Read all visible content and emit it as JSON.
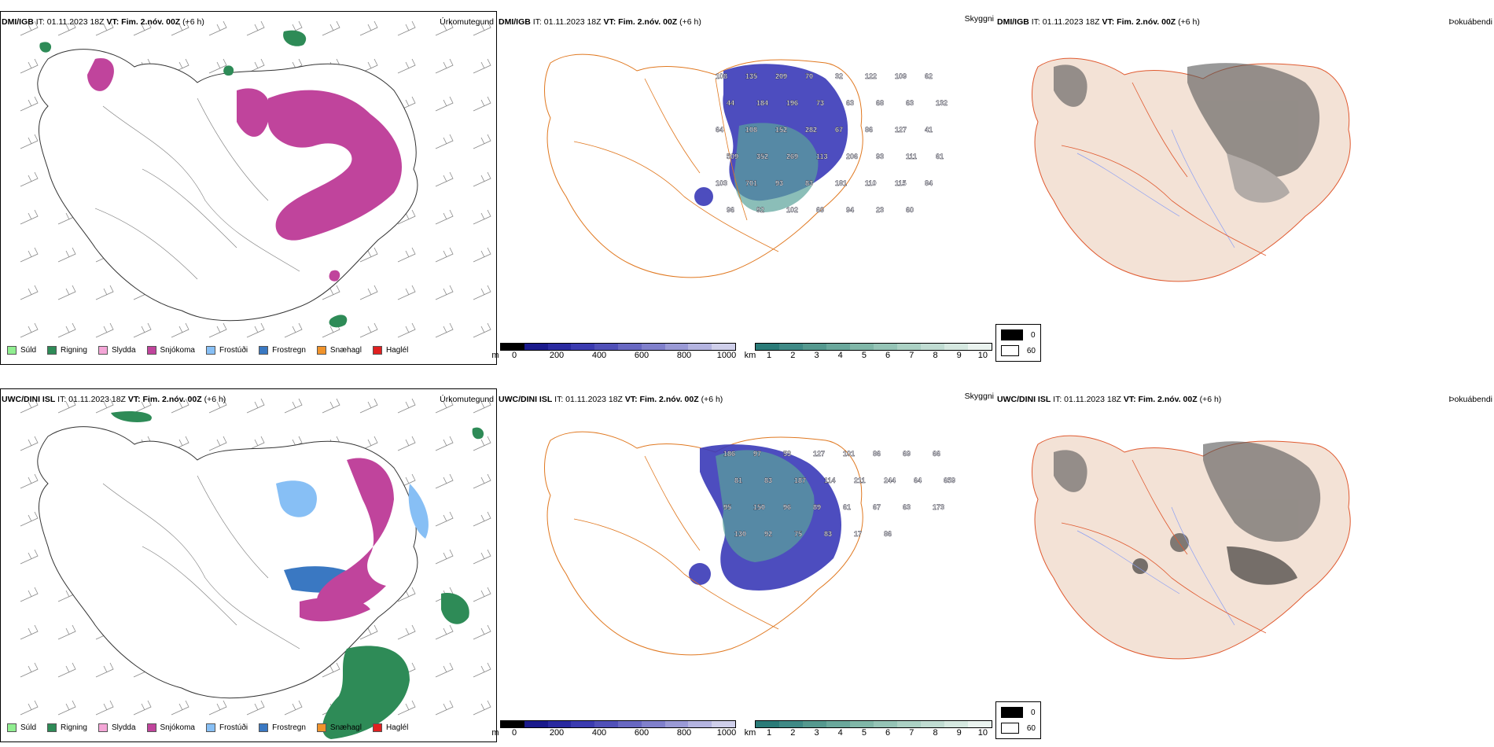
{
  "rows": [
    {
      "id": "top",
      "prefix": "DMI/IGB",
      "it": "IT: 01.11.2023 18Z",
      "vt_label": "VT: Fim. 2.nóv. 00Z",
      "vt_offset": "(+6 h)",
      "precip_title": "Úrkomutegund",
      "cloud_title": "Skyggni",
      "fog_title": "Þokuábendi",
      "value_labels": [
        "108",
        "135",
        "209",
        "70",
        "32",
        "122",
        "109",
        "62",
        "44",
        "184",
        "196",
        "73",
        "63",
        "68",
        "63",
        "132",
        "64",
        "108",
        "152",
        "282",
        "67",
        "86",
        "127",
        "41",
        "509",
        "352",
        "269",
        "113",
        "206",
        "93",
        "111",
        "61",
        "103",
        "701",
        "93",
        "83",
        "181",
        "110",
        "115",
        "84",
        "96",
        "92",
        "102",
        "69",
        "94",
        "23",
        "60"
      ]
    },
    {
      "id": "bottom",
      "prefix": "UWC/DINI ISL",
      "it": "IT: 01.11.2023 18Z",
      "vt_label": "VT: Fim. 2.nóv. 00Z",
      "vt_offset": "(+6 h)",
      "precip_title": "Úrkomutegund",
      "cloud_title": "Skyggni",
      "fog_title": "Þokuábendi",
      "value_labels": [
        "186",
        "97",
        "53",
        "127",
        "101",
        "86",
        "69",
        "66",
        "81",
        "83",
        "187",
        "114",
        "211",
        "244",
        "64",
        "659",
        "95",
        "150",
        "96",
        "89",
        "61",
        "67",
        "63",
        "173",
        "130",
        "92",
        "75",
        "83",
        "17",
        "86"
      ]
    }
  ],
  "precip_legend": [
    {
      "label": "Súld",
      "color": "#90ee90"
    },
    {
      "label": "Rigning",
      "color": "#2e8b57"
    },
    {
      "label": "Slydda",
      "color": "#f4a6d7"
    },
    {
      "label": "Snjókoma",
      "color": "#c0449c"
    },
    {
      "label": "Frostúði",
      "color": "#87bff5"
    },
    {
      "label": "Frostregn",
      "color": "#3a78c2"
    },
    {
      "label": "Snæhagl",
      "color": "#f0932b"
    },
    {
      "label": "Haglél",
      "color": "#e02020"
    }
  ],
  "ceiling_colorbar": {
    "unit": "m",
    "ticks": [
      "0",
      "200",
      "400",
      "600",
      "800",
      "1000"
    ],
    "colors": [
      "#000000",
      "#1a1a8c",
      "#2a2aa0",
      "#3b3bb0",
      "#5050b8",
      "#6868c2",
      "#8080cc",
      "#9a9ad6",
      "#b4b4e0",
      "#cfcfea"
    ]
  },
  "visibility_colorbar": {
    "unit": "km",
    "ticks": [
      "1",
      "2",
      "3",
      "4",
      "5",
      "6",
      "7",
      "8",
      "9",
      "10"
    ],
    "colors": [
      "#2a7b78",
      "#3f8a86",
      "#55998f",
      "#6aa89c",
      "#80b7a8",
      "#95c4b6",
      "#abd1c4",
      "#c0dcd2",
      "#d5e8e0",
      "#eaf3ef"
    ]
  },
  "fog_legend": [
    {
      "label": "0",
      "color": "#000000"
    },
    {
      "label": "60",
      "color": "#ffffff"
    }
  ]
}
